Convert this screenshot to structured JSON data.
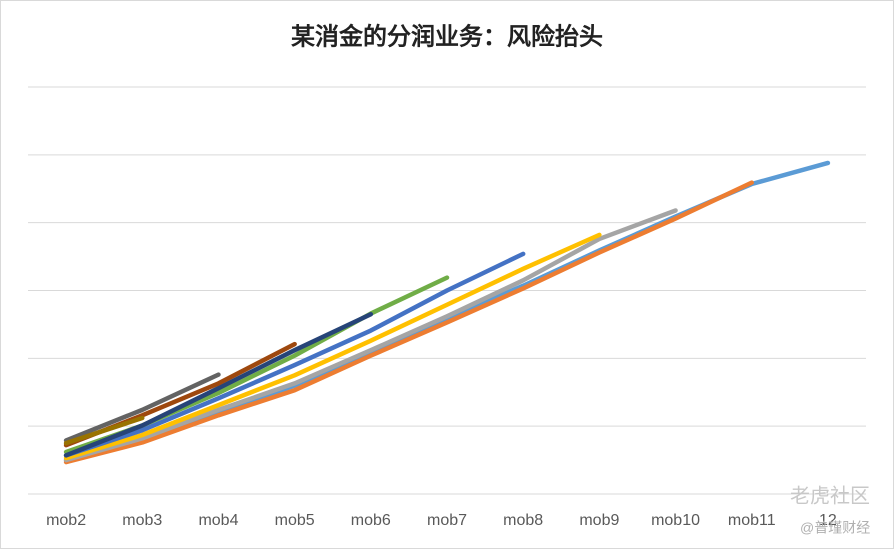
{
  "chart_data": {
    "type": "line",
    "title": "某消金的分润业务：风险抬头",
    "categories": [
      "mob2",
      "mob3",
      "mob4",
      "mob5",
      "mob6",
      "mob7",
      "mob8",
      "mob9",
      "mob10",
      "mob11",
      "12"
    ],
    "ylim": [
      0,
      6
    ],
    "grid_lines": [
      0,
      1,
      2,
      3,
      4,
      5,
      6
    ],
    "grid": true,
    "series": [
      {
        "color": "#5B9BD5",
        "values": [
          0.5,
          0.79,
          1.19,
          1.6,
          2.09,
          2.59,
          3.07,
          3.59,
          4.09,
          4.57,
          4.88
        ]
      },
      {
        "color": "#ED7D31",
        "values": [
          0.47,
          0.76,
          1.16,
          1.53,
          2.04,
          2.53,
          3.03,
          3.56,
          4.06,
          4.59,
          null
        ]
      },
      {
        "color": "#A5A5A5",
        "values": [
          0.5,
          0.82,
          1.24,
          1.63,
          2.12,
          2.62,
          3.15,
          3.76,
          4.18,
          null,
          null
        ]
      },
      {
        "color": "#FFC000",
        "values": [
          0.53,
          0.87,
          1.31,
          1.75,
          2.26,
          2.79,
          3.32,
          3.82,
          null,
          null,
          null
        ]
      },
      {
        "color": "#4472C4",
        "values": [
          0.57,
          0.94,
          1.41,
          1.9,
          2.41,
          3.0,
          3.54,
          null,
          null,
          null,
          null
        ]
      },
      {
        "color": "#70AD47",
        "values": [
          0.62,
          1.01,
          1.49,
          2.04,
          2.66,
          3.19,
          null,
          null,
          null,
          null,
          null
        ]
      },
      {
        "color": "#264478",
        "values": [
          0.57,
          1.01,
          1.56,
          2.12,
          2.65,
          null,
          null,
          null,
          null,
          null,
          null
        ]
      },
      {
        "color": "#9E480E",
        "values": [
          0.72,
          1.16,
          1.63,
          2.21,
          null,
          null,
          null,
          null,
          null,
          null,
          null
        ]
      },
      {
        "color": "#636363",
        "values": [
          0.79,
          1.24,
          1.76,
          null,
          null,
          null,
          null,
          null,
          null,
          null,
          null
        ]
      },
      {
        "color": "#997300",
        "values": [
          0.75,
          1.12,
          null,
          null,
          null,
          null,
          null,
          null,
          null,
          null,
          null
        ]
      }
    ],
    "watermarks": [
      "老虎社区",
      "@普瑾财经"
    ]
  }
}
